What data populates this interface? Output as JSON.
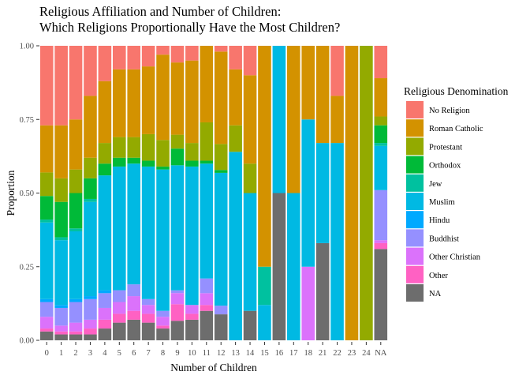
{
  "chart_data": {
    "type": "bar",
    "stacked": "proportion",
    "title": "Religious Affiliation and Number of Children:\nWhich Religions Proportionally Have the Most Children?",
    "xlabel": "Number of Children",
    "ylabel": "Proportion",
    "ylim": [
      0,
      1
    ],
    "y_ticks": [
      "0.00",
      "0.25",
      "0.50",
      "0.75",
      "1.00"
    ],
    "categories": [
      "0",
      "1",
      "2",
      "3",
      "4",
      "5",
      "6",
      "7",
      "8",
      "9",
      "10",
      "11",
      "12",
      "13",
      "14",
      "15",
      "16",
      "17",
      "18",
      "21",
      "22",
      "23",
      "24",
      "NA"
    ],
    "legend": {
      "title": "Religious Denomination",
      "position": "right"
    },
    "stack_order": "first series on top",
    "series": [
      {
        "name": "No Religion",
        "color": "#F8766D",
        "values": [
          0.27,
          0.27,
          0.25,
          0.17,
          0.12,
          0.08,
          0.08,
          0.07,
          0.03,
          0.06,
          0.05,
          0.0,
          0.02,
          0.08,
          0.1,
          0.0,
          0.0,
          0.0,
          0.0,
          0.0,
          0.17,
          0.0,
          0.0,
          0.11
        ]
      },
      {
        "name": "Roman Catholic",
        "color": "#D39200",
        "values": [
          0.16,
          0.18,
          0.17,
          0.21,
          0.21,
          0.23,
          0.23,
          0.23,
          0.29,
          0.26,
          0.28,
          0.26,
          0.32,
          0.19,
          0.3,
          0.75,
          0.0,
          0.5,
          0.25,
          0.33,
          0.16,
          1.0,
          0.0,
          0.13
        ]
      },
      {
        "name": "Protestant",
        "color": "#93AA00",
        "values": [
          0.08,
          0.08,
          0.08,
          0.07,
          0.07,
          0.07,
          0.07,
          0.09,
          0.09,
          0.05,
          0.06,
          0.13,
          0.09,
          0.09,
          0.1,
          0.0,
          0.0,
          0.0,
          0.0,
          0.0,
          0.0,
          0.0,
          1.0,
          0.03
        ]
      },
      {
        "name": "Orthodox",
        "color": "#00BA38",
        "values": [
          0.08,
          0.12,
          0.12,
          0.07,
          0.04,
          0.03,
          0.02,
          0.02,
          0.01,
          0.06,
          0.02,
          0.01,
          0.01,
          0.0,
          0.0,
          0.0,
          0.0,
          0.0,
          0.0,
          0.0,
          0.0,
          0.0,
          0.0,
          0.06
        ]
      },
      {
        "name": "Jew",
        "color": "#00C19F",
        "values": [
          0.01,
          0.01,
          0.01,
          0.01,
          0.0,
          0.0,
          0.0,
          0.0,
          0.0,
          0.0,
          0.0,
          0.0,
          0.0,
          0.0,
          0.0,
          0.13,
          0.0,
          0.0,
          0.0,
          0.0,
          0.0,
          0.0,
          0.0,
          0.01
        ]
      },
      {
        "name": "Muslim",
        "color": "#00B9E3",
        "values": [
          0.26,
          0.22,
          0.23,
          0.32,
          0.39,
          0.42,
          0.41,
          0.45,
          0.48,
          0.45,
          0.47,
          0.39,
          0.46,
          0.64,
          0.4,
          0.12,
          0.5,
          0.5,
          0.5,
          0.34,
          0.67,
          0.0,
          0.0,
          0.15
        ]
      },
      {
        "name": "Hindu",
        "color": "#00A9FF",
        "values": [
          0.01,
          0.01,
          0.01,
          0.01,
          0.01,
          0.0,
          0.0,
          0.0,
          0.0,
          0.0,
          0.0,
          0.0,
          0.0,
          0.0,
          0.0,
          0.0,
          0.0,
          0.0,
          0.0,
          0.0,
          0.0,
          0.0,
          0.0,
          0.0
        ]
      },
      {
        "name": "Buddhist",
        "color": "#9590FF",
        "values": [
          0.05,
          0.06,
          0.07,
          0.07,
          0.05,
          0.04,
          0.04,
          0.02,
          0.02,
          0.01,
          0.0,
          0.05,
          0.03,
          0.0,
          0.0,
          0.0,
          0.0,
          0.0,
          0.0,
          0.0,
          0.0,
          0.0,
          0.0,
          0.17
        ]
      },
      {
        "name": "Other Christian",
        "color": "#DB72FB",
        "values": [
          0.04,
          0.02,
          0.03,
          0.03,
          0.04,
          0.04,
          0.05,
          0.03,
          0.03,
          0.04,
          0.03,
          0.04,
          0.0,
          0.0,
          0.0,
          0.0,
          0.0,
          0.0,
          0.25,
          0.0,
          0.0,
          0.0,
          0.0,
          0.01
        ]
      },
      {
        "name": "Other",
        "color": "#FF61C3",
        "values": [
          0.01,
          0.01,
          0.01,
          0.02,
          0.03,
          0.03,
          0.03,
          0.03,
          0.01,
          0.06,
          0.02,
          0.02,
          0.0,
          0.0,
          0.0,
          0.0,
          0.0,
          0.0,
          0.0,
          0.0,
          0.0,
          0.0,
          0.0,
          0.02
        ]
      },
      {
        "name": "NA",
        "color": "#6D6D6D",
        "values": [
          0.03,
          0.02,
          0.02,
          0.02,
          0.04,
          0.06,
          0.07,
          0.06,
          0.04,
          0.07,
          0.07,
          0.1,
          0.09,
          0.0,
          0.1,
          0.0,
          0.5,
          0.0,
          0.0,
          0.33,
          0.0,
          0.0,
          0.0,
          0.31
        ]
      }
    ]
  }
}
